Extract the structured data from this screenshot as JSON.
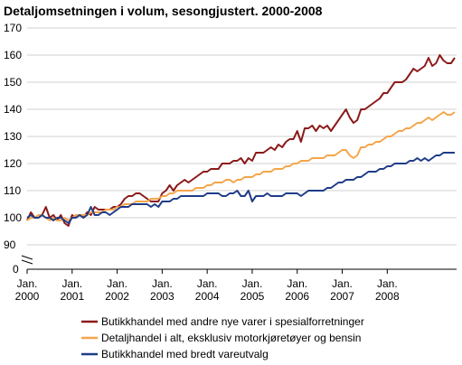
{
  "chart_data": {
    "type": "line",
    "title": "Detaljomsetningen i volum, sesongjustert. 2000-2008",
    "xlabel": "",
    "ylabel": "",
    "ylim": [
      90,
      170
    ],
    "y_axis_break": true,
    "y_ticks": [
      "170",
      "160",
      "150",
      "140",
      "130",
      "120",
      "110",
      "100",
      "90",
      "0"
    ],
    "x_ticks": [
      {
        "line1": "Jan.",
        "line2": "2000"
      },
      {
        "line1": "Jan.",
        "line2": "2001"
      },
      {
        "line1": "Jan.",
        "line2": "2002"
      },
      {
        "line1": "Jan.",
        "line2": "2003"
      },
      {
        "line1": "Jan.",
        "line2": "2004"
      },
      {
        "line1": "Jan.",
        "line2": "2005"
      },
      {
        "line1": "Jan.",
        "line2": "2006"
      },
      {
        "line1": "Jan.",
        "line2": "2007"
      },
      {
        "line1": "Jan.",
        "line2": "2008"
      }
    ],
    "grid": true,
    "legend_position": "bottom",
    "x_start": "2000-01",
    "series": [
      {
        "name": "Butikkhandel med andre nye varer i spesialforretninger",
        "color": "#8b1a1a",
        "values": [
          99,
          102,
          100,
          100,
          101,
          104,
          100,
          101,
          99,
          101,
          98,
          97,
          101,
          100,
          101,
          100,
          102,
          101,
          104,
          103,
          103,
          103,
          103,
          104,
          104,
          105,
          107,
          108,
          108,
          109,
          109,
          108,
          107,
          106,
          106,
          106,
          109,
          110,
          112,
          110,
          112,
          113,
          114,
          113,
          114,
          115,
          116,
          117,
          117,
          118,
          118,
          118,
          120,
          120,
          120,
          121,
          121,
          122,
          120,
          122,
          121,
          124,
          124,
          124,
          125,
          126,
          125,
          127,
          126,
          128,
          129,
          129,
          132,
          128,
          133,
          133,
          134,
          132,
          134,
          133,
          134,
          132,
          134,
          136,
          138,
          140,
          137,
          135,
          136,
          140,
          140,
          141,
          142,
          143,
          144,
          146,
          146,
          148,
          150,
          150,
          150,
          151,
          153,
          155,
          154,
          155,
          156,
          159,
          156,
          157,
          160,
          158,
          157,
          157,
          159
        ]
      },
      {
        "name": "Detaljhandel i alt, eksklusiv motorkjøretøyer og bensin",
        "color": "#f5a54a",
        "values": [
          99,
          100,
          100,
          101,
          101,
          100,
          99,
          100,
          99,
          99,
          100,
          99,
          100,
          101,
          101,
          101,
          101,
          102,
          102,
          102,
          102,
          103,
          103,
          103,
          104,
          104,
          105,
          105,
          105,
          106,
          106,
          106,
          106,
          107,
          107,
          107,
          108,
          108,
          109,
          109,
          110,
          110,
          110,
          110,
          110,
          111,
          111,
          111,
          112,
          112,
          113,
          113,
          113,
          114,
          114,
          113,
          114,
          114,
          115,
          115,
          115,
          116,
          116,
          117,
          117,
          117,
          118,
          118,
          118,
          119,
          119,
          120,
          120,
          121,
          121,
          121,
          122,
          122,
          122,
          122,
          123,
          123,
          123,
          124,
          125,
          125,
          123,
          122,
          123,
          126,
          126,
          127,
          127,
          128,
          128,
          129,
          130,
          130,
          131,
          132,
          132,
          133,
          133,
          134,
          135,
          135,
          136,
          137,
          136,
          137,
          138,
          139,
          138,
          138,
          139
        ]
      },
      {
        "name": "Butikkhandel med bredt vareutvalg",
        "color": "#1f3c88",
        "values": [
          100,
          101,
          100,
          100,
          101,
          100,
          100,
          99,
          100,
          100,
          99,
          98,
          100,
          100,
          101,
          100,
          101,
          104,
          101,
          101,
          102,
          102,
          101,
          102,
          103,
          104,
          104,
          104,
          105,
          105,
          105,
          105,
          105,
          104,
          105,
          104,
          106,
          106,
          106,
          107,
          107,
          108,
          108,
          108,
          108,
          108,
          108,
          108,
          109,
          109,
          109,
          109,
          108,
          108,
          109,
          109,
          110,
          108,
          108,
          110,
          106,
          108,
          108,
          108,
          109,
          108,
          108,
          108,
          108,
          109,
          109,
          109,
          109,
          108,
          109,
          110,
          110,
          110,
          110,
          110,
          111,
          111,
          112,
          113,
          113,
          114,
          114,
          114,
          115,
          115,
          116,
          117,
          117,
          117,
          118,
          118,
          119,
          119,
          120,
          120,
          120,
          120,
          121,
          121,
          122,
          121,
          122,
          121,
          122,
          123,
          123,
          124,
          124,
          124,
          124
        ]
      }
    ]
  }
}
